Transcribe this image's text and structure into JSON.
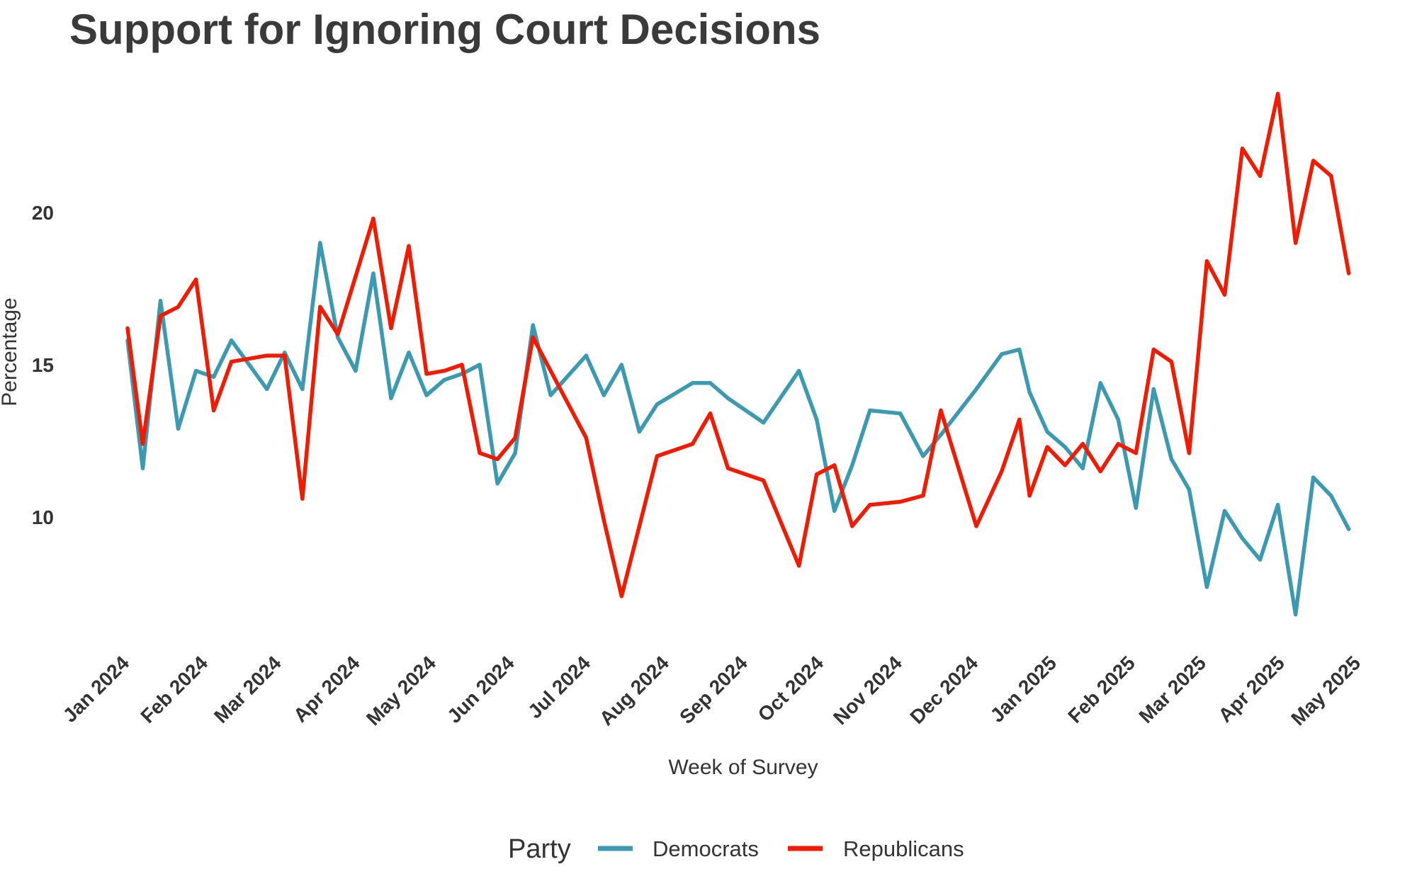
{
  "chart_data": {
    "type": "line",
    "title": "Support for Ignoring Court Decisions",
    "xlabel": "Week of Survey",
    "ylabel": "Percentage",
    "ylim": [
      6.2,
      24.5
    ],
    "xlim": [
      "2024-01-01",
      "2025-05-01"
    ],
    "grid": false,
    "yticks": [
      10,
      15,
      20
    ],
    "xticks": [
      {
        "date": "2024-01-01",
        "label": "Jan 2024"
      },
      {
        "date": "2024-02-01",
        "label": "Feb 2024"
      },
      {
        "date": "2024-03-01",
        "label": "Mar 2024"
      },
      {
        "date": "2024-04-01",
        "label": "Apr 2024"
      },
      {
        "date": "2024-05-01",
        "label": "May 2024"
      },
      {
        "date": "2024-06-01",
        "label": "Jun 2024"
      },
      {
        "date": "2024-07-01",
        "label": "Jul 2024"
      },
      {
        "date": "2024-08-01",
        "label": "Aug 2024"
      },
      {
        "date": "2024-09-01",
        "label": "Sep 2024"
      },
      {
        "date": "2024-10-01",
        "label": "Oct 2024"
      },
      {
        "date": "2024-11-01",
        "label": "Nov 2024"
      },
      {
        "date": "2024-12-01",
        "label": "Dec 2024"
      },
      {
        "date": "2025-01-01",
        "label": "Jan 2025"
      },
      {
        "date": "2025-02-01",
        "label": "Feb 2025"
      },
      {
        "date": "2025-03-01",
        "label": "Mar 2025"
      },
      {
        "date": "2025-04-01",
        "label": "Apr 2025"
      },
      {
        "date": "2025-05-01",
        "label": "May 2025"
      }
    ],
    "legend": {
      "title": "Party",
      "position": "bottom"
    },
    "x": [
      "2024-01-01",
      "2024-01-07",
      "2024-01-14",
      "2024-01-21",
      "2024-01-28",
      "2024-02-04",
      "2024-02-11",
      "2024-02-18",
      "2024-02-25",
      "2024-03-03",
      "2024-03-10",
      "2024-03-17",
      "2024-03-24",
      "2024-03-31",
      "2024-04-07",
      "2024-04-14",
      "2024-04-21",
      "2024-04-28",
      "2024-05-05",
      "2024-05-12",
      "2024-05-19",
      "2024-05-26",
      "2024-06-02",
      "2024-06-09",
      "2024-06-16",
      "2024-06-30",
      "2024-07-07",
      "2024-07-14",
      "2024-07-21",
      "2024-07-28",
      "2024-08-11",
      "2024-08-18",
      "2024-08-25",
      "2024-09-08",
      "2024-09-22",
      "2024-09-29",
      "2024-10-06",
      "2024-10-13",
      "2024-10-20",
      "2024-11-01",
      "2024-11-10",
      "2024-11-17",
      "2024-12-01",
      "2024-12-11",
      "2024-12-18",
      "2024-12-22",
      "2024-12-29",
      "2025-01-05",
      "2025-01-12",
      "2025-01-19",
      "2025-01-26",
      "2025-02-02",
      "2025-02-09",
      "2025-02-16",
      "2025-02-23",
      "2025-03-02",
      "2025-03-09",
      "2025-03-16",
      "2025-03-23",
      "2025-03-30",
      "2025-04-06",
      "2025-04-13",
      "2025-04-20",
      "2025-04-27"
    ],
    "series": [
      {
        "name": "Democrats",
        "color": "#3B9AB2",
        "values": [
          15.8,
          11.6,
          17.1,
          12.9,
          14.8,
          14.6,
          15.8,
          15.0,
          14.2,
          15.4,
          14.2,
          19.0,
          15.9,
          14.8,
          18.0,
          13.9,
          15.4,
          14.0,
          14.5,
          14.7,
          15.0,
          11.1,
          12.1,
          16.3,
          14.0,
          15.3,
          14.0,
          15.0,
          12.8,
          13.7,
          14.4,
          14.4,
          13.9,
          13.1,
          14.8,
          13.2,
          10.2,
          11.7,
          13.5,
          13.4,
          12.0,
          12.7,
          14.2,
          15.35,
          15.5,
          14.1,
          12.8,
          12.3,
          11.6,
          14.4,
          13.2,
          10.3,
          14.2,
          11.9,
          10.9,
          7.7,
          10.2,
          9.3,
          8.6,
          10.4,
          6.8,
          11.3,
          10.7,
          9.6
        ]
      },
      {
        "name": "Republicans",
        "color": "#F21A00",
        "values": [
          16.2,
          12.4,
          16.6,
          16.9,
          17.8,
          13.5,
          15.1,
          15.2,
          15.3,
          15.3,
          10.6,
          16.9,
          16.0,
          17.9,
          19.8,
          16.2,
          18.9,
          14.7,
          14.8,
          15.0,
          12.1,
          11.9,
          12.6,
          15.9,
          14.8,
          12.6,
          9.9,
          7.4,
          9.7,
          12.0,
          12.4,
          13.4,
          11.6,
          11.2,
          8.4,
          11.4,
          11.7,
          9.7,
          10.4,
          10.5,
          10.7,
          13.5,
          9.7,
          11.5,
          13.2,
          10.7,
          12.3,
          11.7,
          12.4,
          11.5,
          12.4,
          12.1,
          15.5,
          15.1,
          12.1,
          18.4,
          17.3,
          22.1,
          21.2,
          23.9,
          19.0,
          21.7,
          21.2,
          18.0
        ]
      }
    ]
  }
}
